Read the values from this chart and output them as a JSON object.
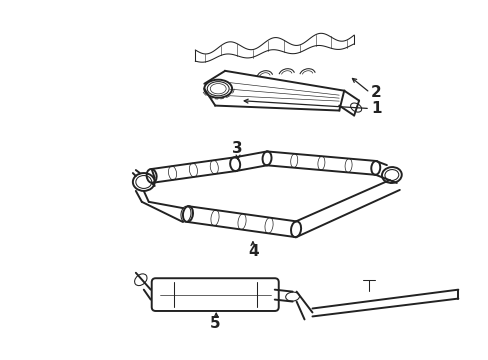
{
  "background_color": "#ffffff",
  "line_color": "#222222",
  "figsize": [
    4.89,
    3.6
  ],
  "dpi": 100,
  "label_fontsize": 11,
  "lw_main": 1.4,
  "lw_thin": 0.75,
  "lw_xtra": 0.5
}
